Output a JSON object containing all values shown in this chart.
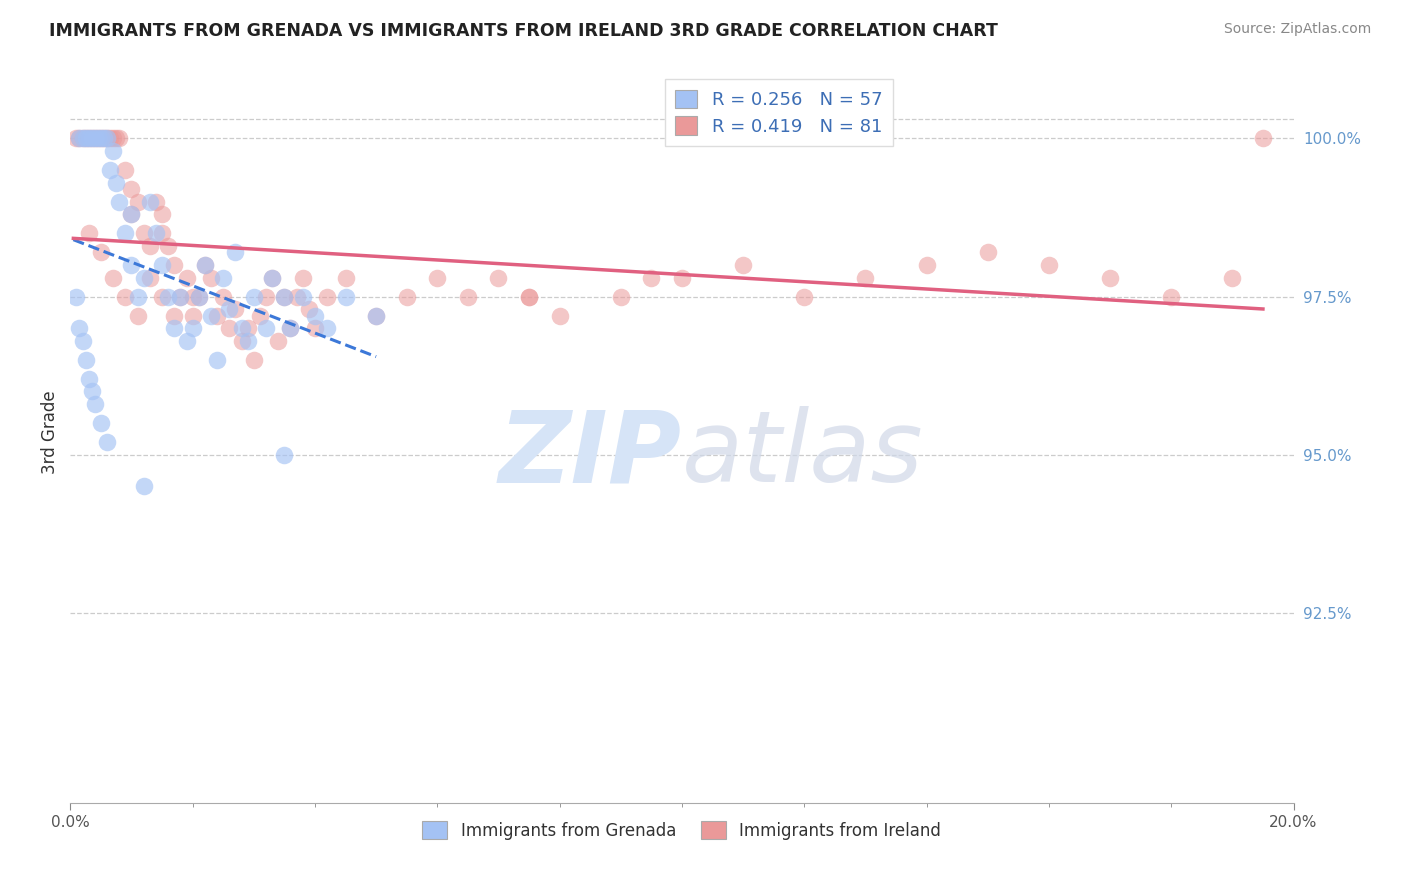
{
  "title": "IMMIGRANTS FROM GRENADA VS IMMIGRANTS FROM IRELAND 3RD GRADE CORRELATION CHART",
  "source": "Source: ZipAtlas.com",
  "ylabel": "3rd Grade",
  "xlim": [
    0.0,
    20.0
  ],
  "ylim": [
    89.5,
    101.2
  ],
  "y_top_line": 100.3,
  "yticks": [
    92.5,
    95.0,
    97.5,
    100.0
  ],
  "ytick_labels": [
    "92.5%",
    "95.0%",
    "97.5%",
    "100.0%"
  ],
  "grenada_R": 0.256,
  "grenada_N": 57,
  "ireland_R": 0.419,
  "ireland_N": 81,
  "grenada_color": "#a4c2f4",
  "ireland_color": "#ea9999",
  "grenada_line_color": "#3c78d8",
  "ireland_line_color": "#e06080",
  "legend_label_grenada": "Immigrants from Grenada",
  "legend_label_ireland": "Immigrants from Ireland",
  "background_color": "#ffffff",
  "watermark_color": "#d6e4f7",
  "title_fontsize": 12.5,
  "tick_fontsize": 11,
  "ytick_color": "#6699cc",
  "xtick_color": "#555555",
  "grenada_x": [
    0.15,
    0.2,
    0.25,
    0.3,
    0.35,
    0.4,
    0.45,
    0.5,
    0.55,
    0.6,
    0.65,
    0.7,
    0.75,
    0.8,
    0.9,
    1.0,
    1.0,
    1.1,
    1.2,
    1.3,
    1.4,
    1.5,
    1.6,
    1.7,
    1.8,
    1.9,
    2.0,
    2.1,
    2.2,
    2.3,
    2.4,
    2.5,
    2.6,
    2.7,
    2.8,
    2.9,
    3.0,
    3.2,
    3.3,
    3.5,
    3.6,
    3.8,
    4.0,
    4.2,
    4.5,
    5.0,
    0.1,
    0.15,
    0.2,
    0.25,
    0.3,
    0.35,
    0.4,
    0.5,
    0.6,
    1.2,
    3.5
  ],
  "grenada_y": [
    100.0,
    100.0,
    100.0,
    100.0,
    100.0,
    100.0,
    100.0,
    100.0,
    100.0,
    100.0,
    99.5,
    99.8,
    99.3,
    99.0,
    98.5,
    98.8,
    98.0,
    97.5,
    97.8,
    99.0,
    98.5,
    98.0,
    97.5,
    97.0,
    97.5,
    96.8,
    97.0,
    97.5,
    98.0,
    97.2,
    96.5,
    97.8,
    97.3,
    98.2,
    97.0,
    96.8,
    97.5,
    97.0,
    97.8,
    97.5,
    97.0,
    97.5,
    97.2,
    97.0,
    97.5,
    97.2,
    97.5,
    97.0,
    96.8,
    96.5,
    96.2,
    96.0,
    95.8,
    95.5,
    95.2,
    94.5,
    95.0
  ],
  "ireland_x": [
    0.1,
    0.15,
    0.2,
    0.25,
    0.3,
    0.35,
    0.4,
    0.45,
    0.5,
    0.55,
    0.6,
    0.65,
    0.7,
    0.75,
    0.8,
    0.9,
    1.0,
    1.0,
    1.1,
    1.2,
    1.3,
    1.4,
    1.5,
    1.5,
    1.6,
    1.7,
    1.8,
    1.9,
    2.0,
    2.0,
    2.1,
    2.2,
    2.3,
    2.4,
    2.5,
    2.6,
    2.7,
    2.8,
    2.9,
    3.0,
    3.1,
    3.2,
    3.3,
    3.4,
    3.5,
    3.6,
    3.7,
    3.8,
    3.9,
    4.0,
    4.2,
    4.5,
    5.0,
    5.5,
    6.0,
    6.5,
    7.0,
    7.5,
    8.0,
    9.0,
    10.0,
    11.0,
    12.0,
    13.0,
    14.0,
    15.0,
    16.0,
    17.0,
    18.0,
    19.0,
    7.5,
    9.5,
    0.3,
    0.5,
    0.7,
    0.9,
    1.1,
    1.3,
    1.5,
    1.7,
    19.5
  ],
  "ireland_y": [
    100.0,
    100.0,
    100.0,
    100.0,
    100.0,
    100.0,
    100.0,
    100.0,
    100.0,
    100.0,
    100.0,
    100.0,
    100.0,
    100.0,
    100.0,
    99.5,
    99.2,
    98.8,
    99.0,
    98.5,
    98.3,
    99.0,
    98.8,
    98.5,
    98.3,
    98.0,
    97.5,
    97.8,
    97.5,
    97.2,
    97.5,
    98.0,
    97.8,
    97.2,
    97.5,
    97.0,
    97.3,
    96.8,
    97.0,
    96.5,
    97.2,
    97.5,
    97.8,
    96.8,
    97.5,
    97.0,
    97.5,
    97.8,
    97.3,
    97.0,
    97.5,
    97.8,
    97.2,
    97.5,
    97.8,
    97.5,
    97.8,
    97.5,
    97.2,
    97.5,
    97.8,
    98.0,
    97.5,
    97.8,
    98.0,
    98.2,
    98.0,
    97.8,
    97.5,
    97.8,
    97.5,
    97.8,
    98.5,
    98.2,
    97.8,
    97.5,
    97.2,
    97.8,
    97.5,
    97.2,
    100.0
  ]
}
